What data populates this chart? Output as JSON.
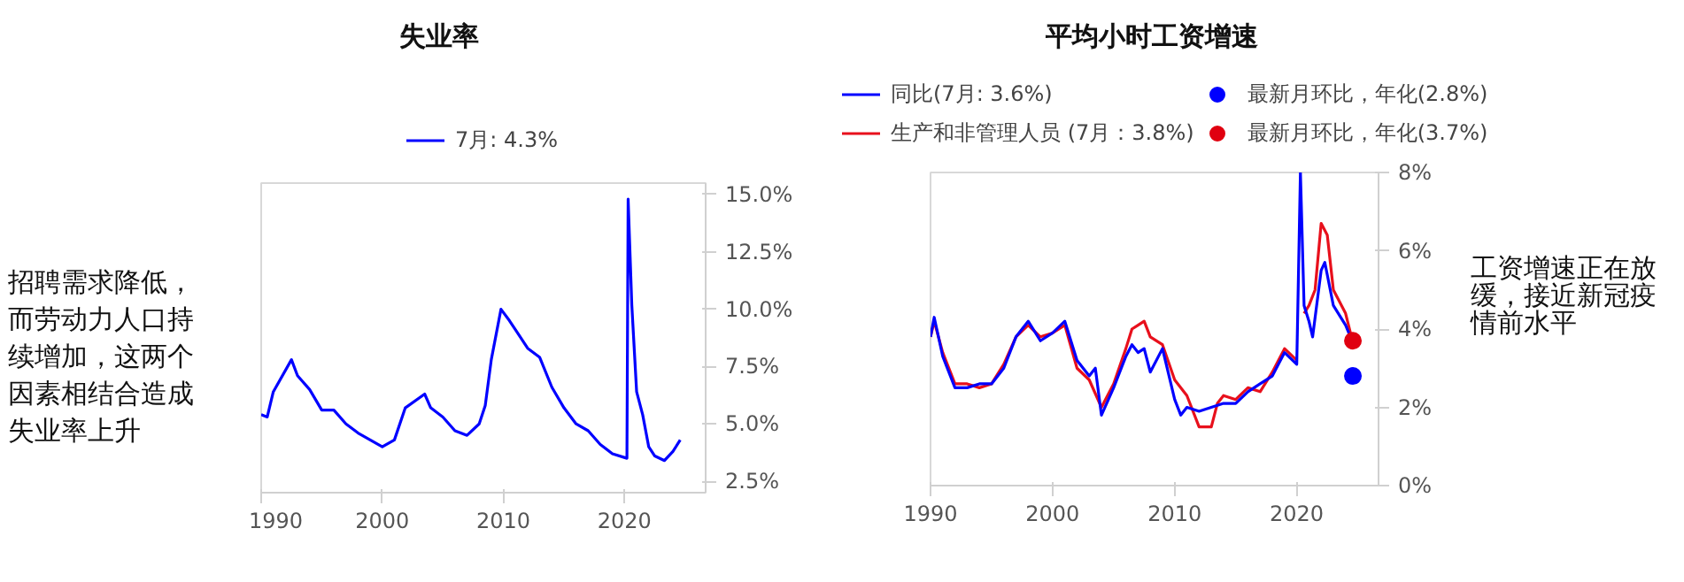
{
  "chart_data": [
    {
      "type": "line",
      "title": "失业率",
      "annotations": [
        "招聘需求降低，而劳动力人口持续增加，这两个因素相结合造成失业率上升"
      ],
      "xlim": [
        1990,
        2026.7
      ],
      "xticks": [
        1990,
        2000,
        2010,
        2020
      ],
      "ylim": [
        2.0,
        15.5
      ],
      "yticks": [
        {
          "value": 2.5,
          "label": "2.5%"
        },
        {
          "value": 5.0,
          "label": "5.0%"
        },
        {
          "value": 7.5,
          "label": "7.5%"
        },
        {
          "value": 10.0,
          "label": "10.0%"
        },
        {
          "value": 12.5,
          "label": "12.5%"
        },
        {
          "value": 15.0,
          "label": "15.0%"
        }
      ],
      "grid": false,
      "legend": "top",
      "series": [
        {
          "name": "7月: 4.3%",
          "color": "#0000ff",
          "x": [
            1990,
            1990.5,
            1991,
            1992.5,
            1993,
            1994,
            1995,
            1996,
            1997,
            1998,
            1999,
            2000,
            2001,
            2001.9,
            2003.5,
            2004,
            2005,
            2006,
            2007,
            2008,
            2008.5,
            2009,
            2009.8,
            2010.5,
            2011,
            2012,
            2013,
            2014,
            2015,
            2016,
            2017,
            2018,
            2019,
            2020.2,
            2020.3,
            2020.6,
            2021,
            2021.5,
            2022,
            2022.5,
            2023.3,
            2024,
            2024.6
          ],
          "values": [
            5.4,
            5.3,
            6.4,
            7.8,
            7.1,
            6.5,
            5.6,
            5.6,
            5.0,
            4.6,
            4.3,
            4.0,
            4.3,
            5.7,
            6.3,
            5.7,
            5.3,
            4.7,
            4.5,
            5.0,
            5.8,
            7.8,
            10.0,
            9.5,
            9.1,
            8.3,
            7.9,
            6.6,
            5.7,
            5.0,
            4.7,
            4.1,
            3.7,
            3.5,
            14.8,
            10.2,
            6.4,
            5.4,
            4.0,
            3.6,
            3.4,
            3.8,
            4.3
          ]
        }
      ]
    },
    {
      "type": "line",
      "title": "平均小时工资增速",
      "annotations": [
        "工资增速正在放缓，接近新冠疫情前水平"
      ],
      "xlim": [
        1990,
        2026.7
      ],
      "xticks": [
        1990,
        2000,
        2010,
        2020
      ],
      "ylim": [
        0,
        8
      ],
      "yticks": [
        {
          "value": 0,
          "label": "0%"
        },
        {
          "value": 2,
          "label": "2%"
        },
        {
          "value": 4,
          "label": "4%"
        },
        {
          "value": 6,
          "label": "6%"
        },
        {
          "value": 8,
          "label": "8%"
        }
      ],
      "grid": false,
      "legend": "top",
      "series": [
        {
          "name": "生产和非管理人员 (7月：3.8%)",
          "color": "#e8101c",
          "x": [
            1990,
            1990.3,
            1991,
            1992,
            1993,
            1994,
            1995,
            1996,
            1997,
            1998,
            1999,
            2000,
            2001,
            2002,
            2003,
            2004,
            2005,
            2006,
            2006.5,
            2007,
            2007.5,
            2008,
            2009,
            2010,
            2011,
            2012,
            2013,
            2013.5,
            2014,
            2015,
            2016,
            2017,
            2018,
            2019,
            2020,
            2020.3,
            2020.6,
            2021,
            2021.5,
            2022,
            2022.5,
            2023,
            2024,
            2024.4
          ],
          "values": [
            3.8,
            4.2,
            3.4,
            2.6,
            2.6,
            2.5,
            2.6,
            3.1,
            3.8,
            4.1,
            3.8,
            3.9,
            4.1,
            3.0,
            2.7,
            2.0,
            2.6,
            3.5,
            4.0,
            4.1,
            4.2,
            3.8,
            3.6,
            2.7,
            2.3,
            1.5,
            1.5,
            2.1,
            2.3,
            2.2,
            2.5,
            2.4,
            2.9,
            3.5,
            3.2,
            null,
            4.4,
            4.6,
            5.0,
            6.7,
            6.4,
            5.0,
            4.4,
            3.9
          ]
        },
        {
          "name": "同比(7月: 3.6%)",
          "color": "#0000ff",
          "x": [
            1990,
            1990.3,
            1991,
            1991.5,
            1992,
            1993,
            1994,
            1995,
            1996,
            1997,
            1998,
            1999,
            2000,
            2001,
            2002,
            2003,
            2003.5,
            2004,
            2005,
            2006,
            2006.5,
            2007,
            2007.5,
            2008,
            2009,
            2010,
            2010.5,
            2011,
            2012,
            2013,
            2014,
            2015,
            2016,
            2017,
            2018,
            2019,
            2020,
            2020.3,
            2020.6,
            2021,
            2021.3,
            2022,
            2022.3,
            2023,
            2024,
            2024.4
          ],
          "values": [
            3.8,
            4.3,
            3.3,
            2.9,
            2.5,
            2.5,
            2.6,
            2.6,
            3.0,
            3.8,
            4.2,
            3.7,
            3.9,
            4.2,
            3.2,
            2.8,
            3.0,
            1.8,
            2.5,
            3.3,
            3.6,
            3.4,
            3.5,
            2.9,
            3.5,
            2.2,
            1.8,
            2.0,
            1.9,
            2.0,
            2.1,
            2.1,
            2.4,
            2.6,
            2.8,
            3.4,
            3.1,
            8.0,
            4.6,
            4.2,
            3.8,
            5.5,
            5.7,
            4.6,
            4.1,
            3.8
          ]
        },
        {
          "type": "scatter",
          "name": "最新月环比，年化(2.8%)",
          "color": "#0000ff",
          "x": [
            2024.6
          ],
          "values": [
            2.8
          ]
        },
        {
          "type": "scatter",
          "name": "最新月环比，年化(3.7%)",
          "color": "#e00010",
          "x": [
            2024.6
          ],
          "values": [
            3.7
          ]
        }
      ]
    }
  ]
}
